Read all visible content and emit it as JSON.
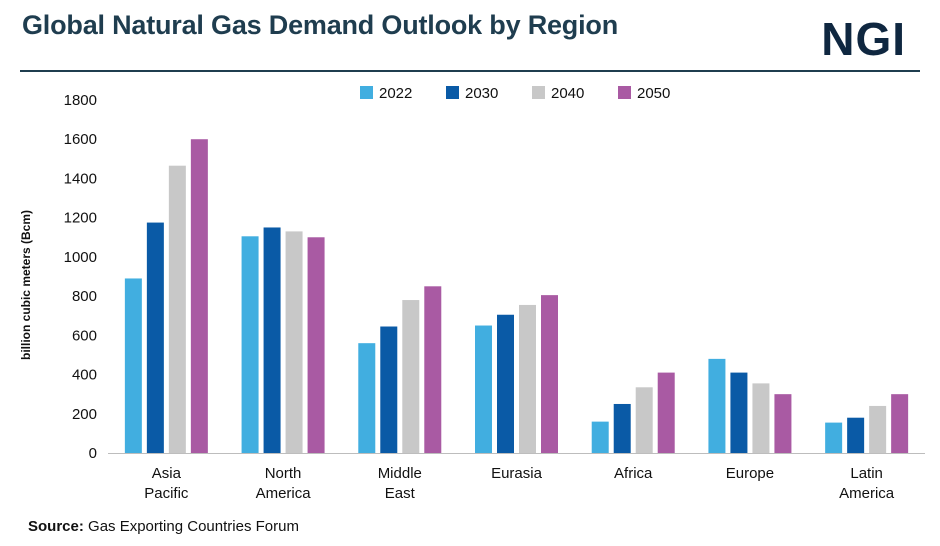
{
  "header": {
    "title": "Global Natural Gas Demand Outlook by Region",
    "logo": "NGI"
  },
  "footer": {
    "source_label": "Source:",
    "source_text": "Gas Exporting Countries Forum"
  },
  "colors": {
    "2022": "#41aee0",
    "2030": "#0a5aa6",
    "2040": "#c8c8c8",
    "2050": "#a95aa3"
  },
  "chart_data": {
    "type": "bar",
    "title": "Global Natural Gas Demand Outlook by Region",
    "xlabel": "",
    "ylabel": "billion cubic meters (Bcm)",
    "ylim": [
      0,
      1800
    ],
    "yticks": [
      0,
      200,
      400,
      600,
      800,
      1000,
      1200,
      1400,
      1600,
      1800
    ],
    "grid": false,
    "legend_position": "top-center",
    "categories": [
      [
        "Asia",
        "Pacific"
      ],
      [
        "North",
        "America"
      ],
      [
        "Middle",
        "East"
      ],
      [
        "Eurasia"
      ],
      [
        "Africa"
      ],
      [
        "Europe"
      ],
      [
        "Latin",
        "America"
      ]
    ],
    "series": [
      {
        "name": "2022",
        "values": [
          890,
          1105,
          560,
          650,
          160,
          480,
          155
        ]
      },
      {
        "name": "2030",
        "values": [
          1175,
          1150,
          645,
          705,
          250,
          410,
          180
        ]
      },
      {
        "name": "2040",
        "values": [
          1465,
          1130,
          780,
          755,
          335,
          355,
          240
        ]
      },
      {
        "name": "2050",
        "values": [
          1600,
          1100,
          850,
          805,
          410,
          300,
          300
        ]
      }
    ]
  }
}
